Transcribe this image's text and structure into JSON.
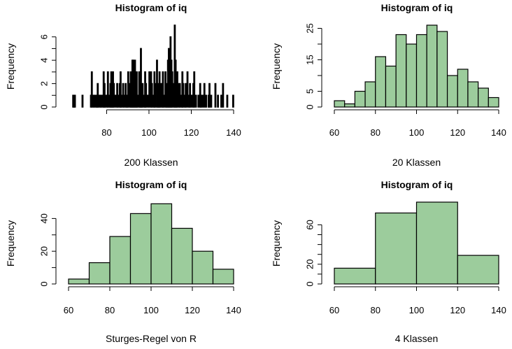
{
  "chart_data": [
    {
      "type": "bar",
      "title": "Histogram of iq",
      "xlabel": "200 Klassen",
      "ylabel": "Frequency",
      "xlim": [
        62,
        140
      ],
      "ylim": [
        0,
        7
      ],
      "xticks": [
        "80",
        "100",
        "120",
        "140"
      ],
      "yticks": [
        "0",
        "2",
        "4",
        "6"
      ],
      "bin_width": 0.4,
      "fill": "#ffffff",
      "bins": [
        [
          64,
          1
        ],
        [
          64.4,
          1
        ],
        [
          64.8,
          1
        ],
        [
          68.4,
          1
        ],
        [
          72.4,
          1
        ],
        [
          72.8,
          3
        ],
        [
          73.6,
          1
        ],
        [
          74,
          1
        ],
        [
          74.8,
          1
        ],
        [
          75.2,
          1
        ],
        [
          75.6,
          2
        ],
        [
          76,
          1
        ],
        [
          76.8,
          1
        ],
        [
          77.2,
          1
        ],
        [
          78,
          1
        ],
        [
          78.4,
          3
        ],
        [
          78.8,
          2
        ],
        [
          79.2,
          1
        ],
        [
          80,
          1
        ],
        [
          80.4,
          3
        ],
        [
          81.2,
          1
        ],
        [
          81.6,
          2
        ],
        [
          82,
          3
        ],
        [
          82.4,
          1
        ],
        [
          82.8,
          3
        ],
        [
          83.2,
          2
        ],
        [
          84,
          1
        ],
        [
          84.8,
          2
        ],
        [
          85.2,
          1
        ],
        [
          86,
          2
        ],
        [
          86.4,
          3
        ],
        [
          86.8,
          1
        ],
        [
          87.6,
          2
        ],
        [
          88,
          1
        ],
        [
          88.8,
          2
        ],
        [
          89.2,
          1
        ],
        [
          89.6,
          1
        ],
        [
          90,
          3
        ],
        [
          90.8,
          2
        ],
        [
          91.2,
          3
        ],
        [
          91.6,
          2
        ],
        [
          92,
          4
        ],
        [
          92.4,
          4
        ],
        [
          92.8,
          3
        ],
        [
          93.2,
          4
        ],
        [
          93.6,
          2
        ],
        [
          94,
          3
        ],
        [
          94.4,
          1
        ],
        [
          95.2,
          3
        ],
        [
          95.6,
          2
        ],
        [
          96,
          5
        ],
        [
          96.4,
          1
        ],
        [
          96.8,
          2
        ],
        [
          97.6,
          1
        ],
        [
          98,
          3
        ],
        [
          98.4,
          2
        ],
        [
          99.2,
          1
        ],
        [
          100,
          3
        ],
        [
          100.8,
          3
        ],
        [
          101.2,
          2
        ],
        [
          102,
          1
        ],
        [
          102.4,
          3
        ],
        [
          102.8,
          2
        ],
        [
          103.6,
          4
        ],
        [
          104,
          2
        ],
        [
          104.4,
          1
        ],
        [
          104.8,
          3
        ],
        [
          105.2,
          2
        ],
        [
          106,
          2
        ],
        [
          106.4,
          3
        ],
        [
          106.8,
          1
        ],
        [
          107.6,
          3
        ],
        [
          108,
          2
        ],
        [
          108.4,
          1
        ],
        [
          108.8,
          4
        ],
        [
          109.2,
          5
        ],
        [
          109.6,
          4
        ],
        [
          110,
          6
        ],
        [
          110.4,
          4
        ],
        [
          110.8,
          3
        ],
        [
          111.6,
          2
        ],
        [
          112,
          7
        ],
        [
          112.4,
          4
        ],
        [
          112.8,
          1
        ],
        [
          113.2,
          3
        ],
        [
          114,
          2
        ],
        [
          114.4,
          2
        ],
        [
          115.2,
          1
        ],
        [
          115.6,
          3
        ],
        [
          116,
          2
        ],
        [
          116.8,
          1
        ],
        [
          117.2,
          2
        ],
        [
          118,
          3
        ],
        [
          118.8,
          1
        ],
        [
          119.2,
          2
        ],
        [
          120,
          1
        ],
        [
          120.8,
          2
        ],
        [
          121.2,
          3
        ],
        [
          122,
          1
        ],
        [
          123.2,
          1
        ],
        [
          124,
          2
        ],
        [
          124.4,
          1
        ],
        [
          125.2,
          1
        ],
        [
          126,
          2
        ],
        [
          126.8,
          1
        ],
        [
          128,
          1
        ],
        [
          128.4,
          2
        ],
        [
          129.2,
          1
        ],
        [
          131.2,
          2
        ],
        [
          132.4,
          1
        ],
        [
          134,
          1
        ],
        [
          134.8,
          2
        ],
        [
          136.8,
          1
        ],
        [
          139.6,
          1
        ]
      ]
    },
    {
      "type": "bar",
      "title": "Histogram of iq",
      "xlabel": "20 Klassen",
      "ylabel": "Frequency",
      "xlim": [
        60,
        140
      ],
      "ylim": [
        0,
        26
      ],
      "xticks": [
        "60",
        "80",
        "100",
        "120",
        "140"
      ],
      "yticks": [
        "0",
        "5",
        "15",
        "25"
      ],
      "bin_width": 5,
      "fill": "#9ccc9c",
      "bins": [
        [
          60,
          2
        ],
        [
          65,
          1
        ],
        [
          70,
          5
        ],
        [
          75,
          8
        ],
        [
          80,
          16
        ],
        [
          85,
          13
        ],
        [
          90,
          23
        ],
        [
          95,
          20
        ],
        [
          100,
          23
        ],
        [
          105,
          26
        ],
        [
          110,
          24
        ],
        [
          115,
          10
        ],
        [
          120,
          12
        ],
        [
          125,
          8
        ],
        [
          130,
          6
        ],
        [
          135,
          3
        ]
      ]
    },
    {
      "type": "bar",
      "title": "Histogram of iq",
      "xlabel": "Sturges-Regel von R",
      "ylabel": "Frequency",
      "xlim": [
        60,
        140
      ],
      "ylim": [
        0,
        50
      ],
      "xticks": [
        "60",
        "80",
        "100",
        "120",
        "140"
      ],
      "yticks": [
        "0",
        "20",
        "40"
      ],
      "bin_width": 10,
      "fill": "#9ccc9c",
      "bins": [
        [
          60,
          3
        ],
        [
          70,
          13
        ],
        [
          80,
          29
        ],
        [
          90,
          43
        ],
        [
          100,
          49
        ],
        [
          110,
          34
        ],
        [
          120,
          20
        ],
        [
          130,
          9
        ]
      ]
    },
    {
      "type": "bar",
      "title": "Histogram of iq",
      "xlabel": "4 Klassen",
      "ylabel": "Frequency",
      "xlim": [
        60,
        140
      ],
      "ylim": [
        0,
        83
      ],
      "xticks": [
        "60",
        "80",
        "100",
        "120",
        "140"
      ],
      "yticks": [
        "0",
        "20",
        "60"
      ],
      "bin_width": 20,
      "fill": "#9ccc9c",
      "bins": [
        [
          60,
          16
        ],
        [
          80,
          72
        ],
        [
          100,
          83
        ],
        [
          120,
          29
        ]
      ]
    }
  ]
}
